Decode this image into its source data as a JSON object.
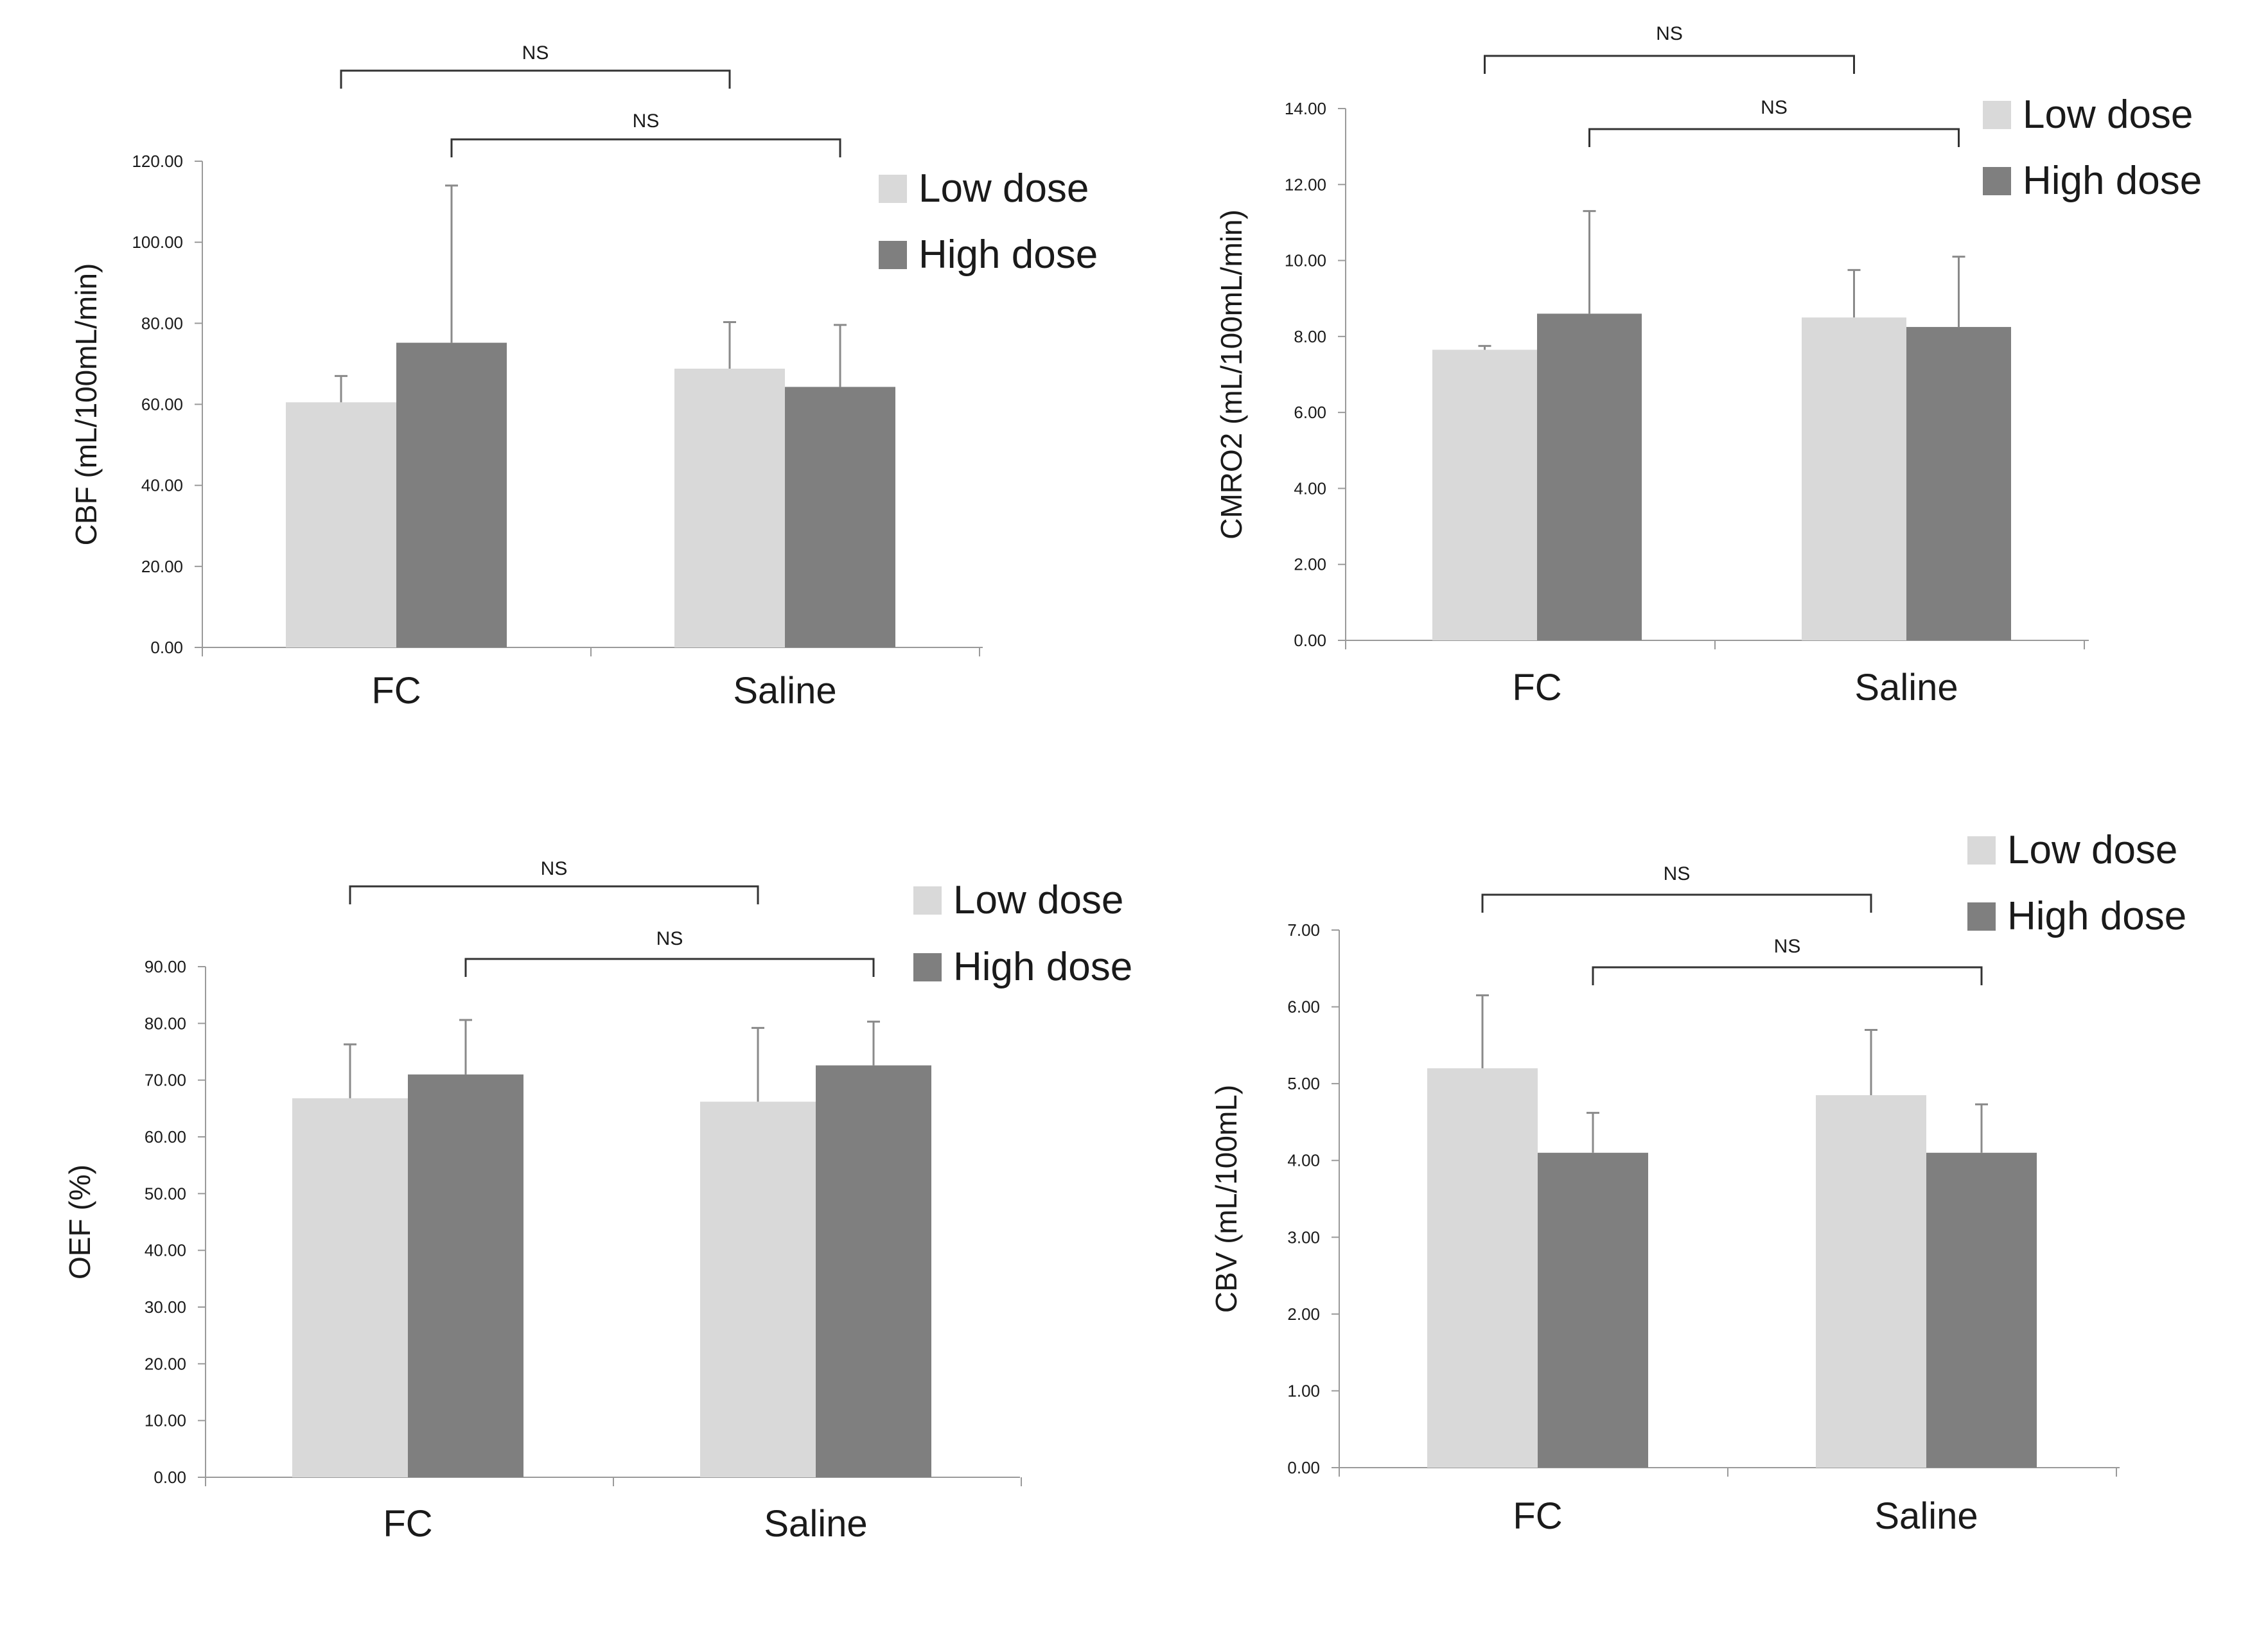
{
  "chart_data": [
    {
      "type": "bar",
      "title": "",
      "ylabel": "CBF (mL/100mL/min)",
      "xlabel": "",
      "categories": [
        "FC",
        "Saline"
      ],
      "ylim": [
        0,
        120
      ],
      "yticks": [
        "0.00",
        "20.00",
        "40.00",
        "60.00",
        "80.00",
        "100.00",
        "120.00"
      ],
      "series": [
        {
          "name": "Low dose",
          "color": "#d9d9d9",
          "values": [
            60.5,
            68.8
          ],
          "errors": [
            6.5,
            11.5
          ]
        },
        {
          "name": "High dose",
          "color": "#7f7f7f",
          "values": [
            75.2,
            64.3
          ],
          "errors": [
            38.8,
            15.3
          ]
        }
      ],
      "comparisons": [
        {
          "label": "NS",
          "from": "FC Low dose",
          "to": "Saline Low dose"
        },
        {
          "label": "NS",
          "from": "FC High dose",
          "to": "Saline High dose"
        }
      ],
      "legend": "top-right"
    },
    {
      "type": "bar",
      "title": "",
      "ylabel": "CMRO2 (mL/100mL/min)",
      "xlabel": "",
      "categories": [
        "FC",
        "Saline"
      ],
      "ylim": [
        0,
        14
      ],
      "yticks": [
        "0.00",
        "2.00",
        "4.00",
        "6.00",
        "8.00",
        "10.00",
        "12.00",
        "14.00"
      ],
      "series": [
        {
          "name": "Low dose",
          "color": "#d9d9d9",
          "values": [
            7.65,
            8.5
          ],
          "errors": [
            0.1,
            1.25
          ]
        },
        {
          "name": "High dose",
          "color": "#7f7f7f",
          "values": [
            8.6,
            8.25
          ],
          "errors": [
            2.7,
            1.85
          ]
        }
      ],
      "comparisons": [
        {
          "label": "NS",
          "from": "FC Low dose",
          "to": "Saline Low dose"
        },
        {
          "label": "NS",
          "from": "FC High dose",
          "to": "Saline High dose"
        }
      ],
      "legend": "top-right"
    },
    {
      "type": "bar",
      "title": "",
      "ylabel": "OEF (%)",
      "xlabel": "",
      "categories": [
        "FC",
        "Saline"
      ],
      "ylim": [
        0,
        90
      ],
      "yticks": [
        "0.00",
        "10.00",
        "20.00",
        "30.00",
        "40.00",
        "50.00",
        "60.00",
        "70.00",
        "80.00",
        "90.00"
      ],
      "series": [
        {
          "name": "Low dose",
          "color": "#d9d9d9",
          "values": [
            66.8,
            66.2
          ],
          "errors": [
            9.5,
            13.0
          ]
        },
        {
          "name": "High dose",
          "color": "#7f7f7f",
          "values": [
            71.0,
            72.6
          ],
          "errors": [
            9.6,
            7.7
          ]
        }
      ],
      "comparisons": [
        {
          "label": "NS",
          "from": "FC Low dose",
          "to": "Saline Low dose"
        },
        {
          "label": "NS",
          "from": "FC High dose",
          "to": "Saline High dose"
        }
      ],
      "legend": "top-right"
    },
    {
      "type": "bar",
      "title": "",
      "ylabel": "CBV (mL/100mL)",
      "xlabel": "",
      "categories": [
        "FC",
        "Saline"
      ],
      "ylim": [
        0,
        7
      ],
      "yticks": [
        "0.00",
        "1.00",
        "2.00",
        "3.00",
        "4.00",
        "5.00",
        "6.00",
        "7.00"
      ],
      "series": [
        {
          "name": "Low dose",
          "color": "#d9d9d9",
          "values": [
            5.2,
            4.85
          ],
          "errors": [
            0.95,
            0.85
          ]
        },
        {
          "name": "High dose",
          "color": "#7f7f7f",
          "values": [
            4.1,
            4.1
          ],
          "errors": [
            0.52,
            0.63
          ]
        }
      ],
      "comparisons": [
        {
          "label": "NS",
          "from": "FC Low dose",
          "to": "Saline Low dose"
        },
        {
          "label": "NS",
          "from": "FC High dose",
          "to": "Saline High dose"
        }
      ],
      "legend": "top-right"
    }
  ]
}
